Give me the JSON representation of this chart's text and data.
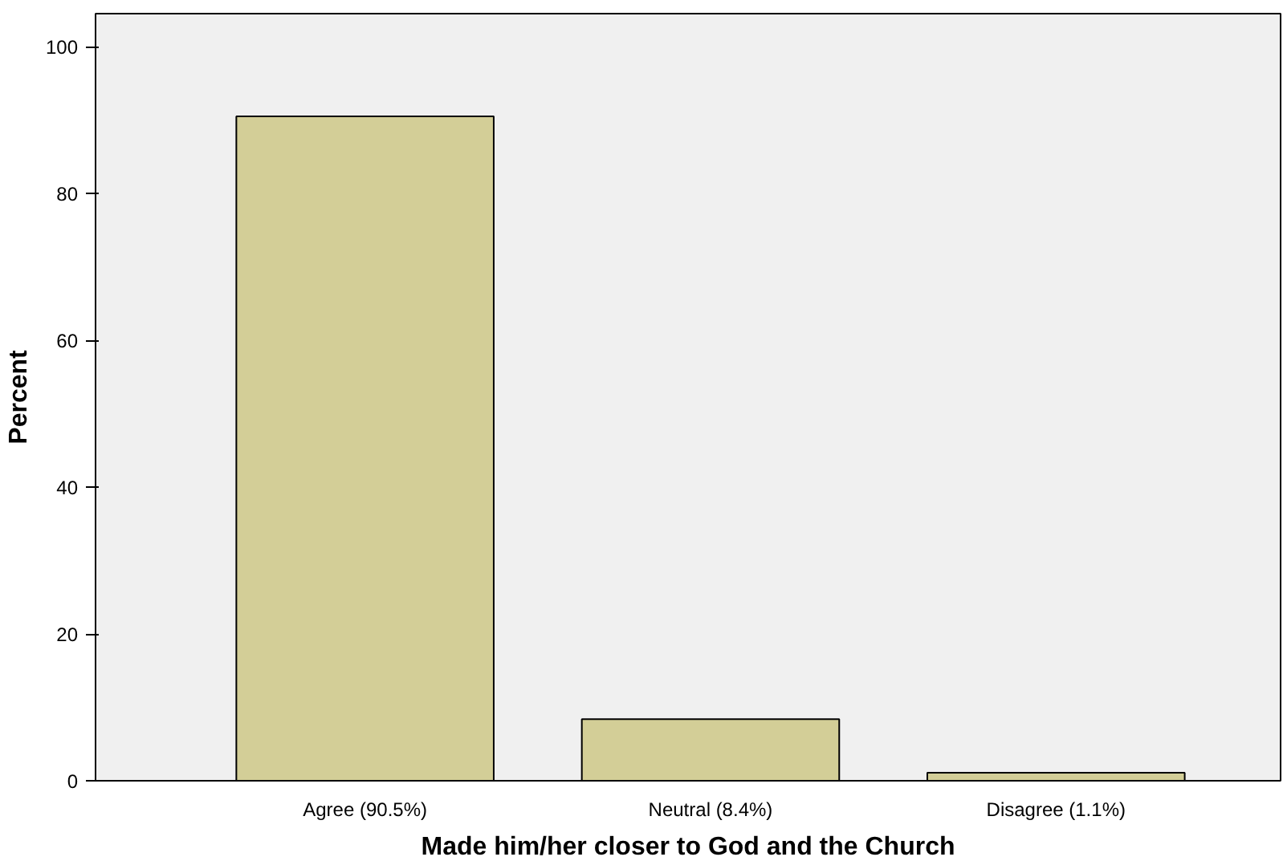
{
  "chart_data": {
    "type": "bar",
    "xlabel": "Made him/her closer to God and the Church",
    "ylabel": "Percent",
    "categories": [
      "Agree (90.5%)",
      "Neutral (8.4%)",
      "Disagree (1.1%)"
    ],
    "values": [
      90.5,
      8.4,
      1.1
    ],
    "color": "#d3ce97",
    "ylim": [
      0,
      104.5
    ],
    "yticks": [
      0,
      20,
      40,
      60,
      80,
      100
    ],
    "grid": false
  }
}
